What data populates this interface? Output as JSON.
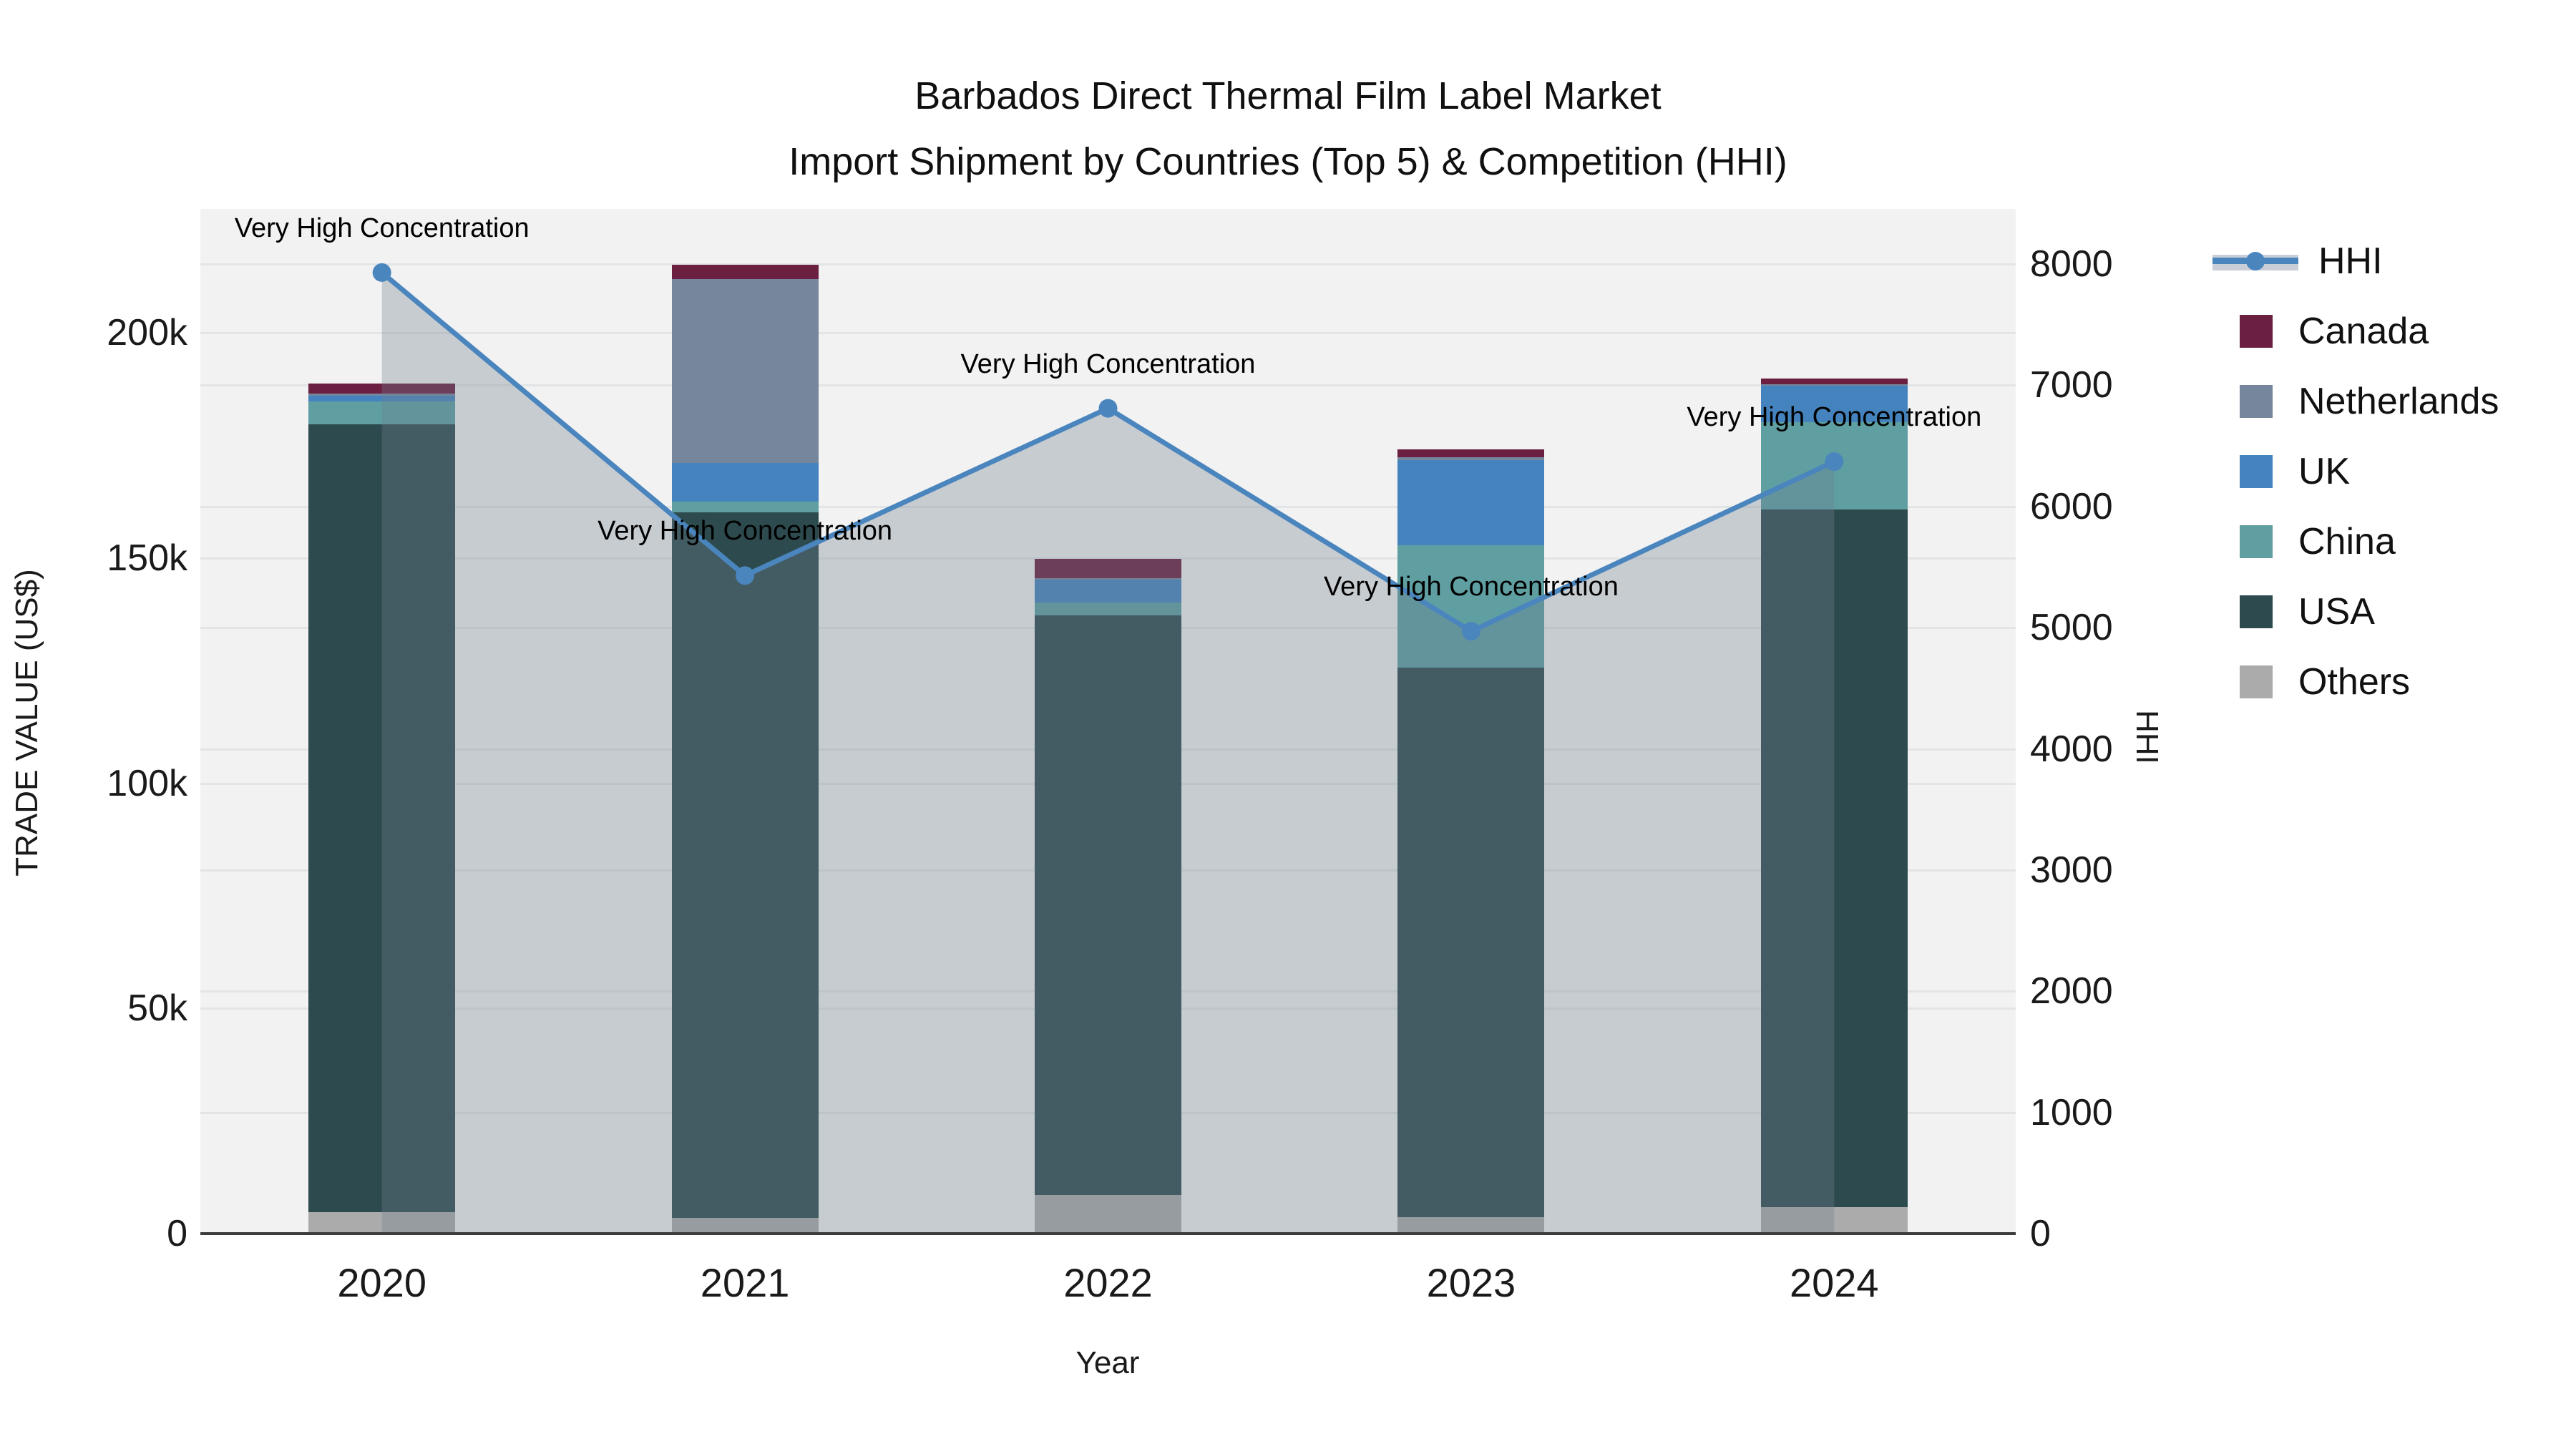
{
  "title": {
    "line1": "Barbados Direct Thermal Film Label Market",
    "line2": "Import Shipment by Countries (Top 5) & Competition (HHI)"
  },
  "axes": {
    "x": {
      "title": "Year",
      "ticks": [
        "2020",
        "2021",
        "2022",
        "2023",
        "2024"
      ]
    },
    "y_left": {
      "title": "TRADE VALUE (US$)",
      "ticks": [
        "0",
        "50k",
        "100k",
        "150k",
        "200k"
      ]
    },
    "y_right": {
      "title": "HHI",
      "ticks": [
        "0",
        "1000",
        "2000",
        "3000",
        "4000",
        "5000",
        "6000",
        "7000",
        "8000"
      ]
    }
  },
  "legend": {
    "items": [
      {
        "label": "HHI",
        "kind": "line",
        "color": "#4a85be",
        "band": "#c9ced7"
      },
      {
        "label": "Canada",
        "kind": "swatch",
        "color": "#6b1f41"
      },
      {
        "label": "Netherlands",
        "kind": "swatch",
        "color": "#76869c"
      },
      {
        "label": "UK",
        "kind": "swatch",
        "color": "#4483bd"
      },
      {
        "label": "China",
        "kind": "swatch",
        "color": "#5f9fa1"
      },
      {
        "label": "USA",
        "kind": "swatch",
        "color": "#2d4b4e"
      },
      {
        "label": "Others",
        "kind": "swatch",
        "color": "#ababab"
      }
    ]
  },
  "chart_data": {
    "type": "bar",
    "subtype": "stacked-bars-with-hhi-line-and-area",
    "title": "Barbados Direct Thermal Film Label Market — Import Shipment by Countries (Top 5) & Competition (HHI)",
    "xlabel": "Year",
    "ylabel_left": "TRADE VALUE (US$)",
    "ylabel_right": "HHI",
    "categories": [
      "2020",
      "2021",
      "2022",
      "2023",
      "2024"
    ],
    "series": [
      {
        "name": "Others",
        "color": "#ababab",
        "values_k": [
          4.7,
          3.5,
          8.6,
          3.7,
          5.8
        ]
      },
      {
        "name": "USA",
        "color": "#2d4b4e",
        "values_k": [
          175.0,
          156.7,
          128.7,
          122.0,
          155.0
        ]
      },
      {
        "name": "China",
        "color": "#5f9fa1",
        "values_k": [
          5.0,
          2.4,
          2.9,
          27.1,
          19.3
        ]
      },
      {
        "name": "UK",
        "color": "#4483bd",
        "values_k": [
          1.4,
          8.5,
          5.0,
          19.0,
          8.1
        ]
      },
      {
        "name": "Netherlands",
        "color": "#76869c",
        "values_k": [
          0.4,
          40.8,
          0.4,
          0.6,
          0.4
        ]
      },
      {
        "name": "Canada",
        "color": "#6b1f41",
        "values_k": [
          2.2,
          3.2,
          4.2,
          1.7,
          1.3
        ]
      }
    ],
    "bar_totals_k": [
      188.7,
      215.1,
      149.8,
      174.1,
      189.9
    ],
    "line_series": {
      "name": "HHI",
      "color": "#4a85be",
      "marker": "circle",
      "area_fill": "rgba(112,128,144,0.33)",
      "values": [
        7930,
        5430,
        6810,
        4970,
        6370
      ]
    },
    "annotations": [
      {
        "x": "2020",
        "text": "Very High Concentration"
      },
      {
        "x": "2021",
        "text": "Very High Concentration"
      },
      {
        "x": "2022",
        "text": "Very High Concentration"
      },
      {
        "x": "2023",
        "text": "Very High Concentration"
      },
      {
        "x": "2024",
        "text": "Very High Concentration"
      }
    ],
    "ylim_left": [
      0,
      227500
    ],
    "ylim_right": [
      0,
      8455
    ],
    "grid": true,
    "legend_position": "right",
    "plot_background": "#f2f2f2",
    "gridline_color": "#e2e4e6"
  }
}
